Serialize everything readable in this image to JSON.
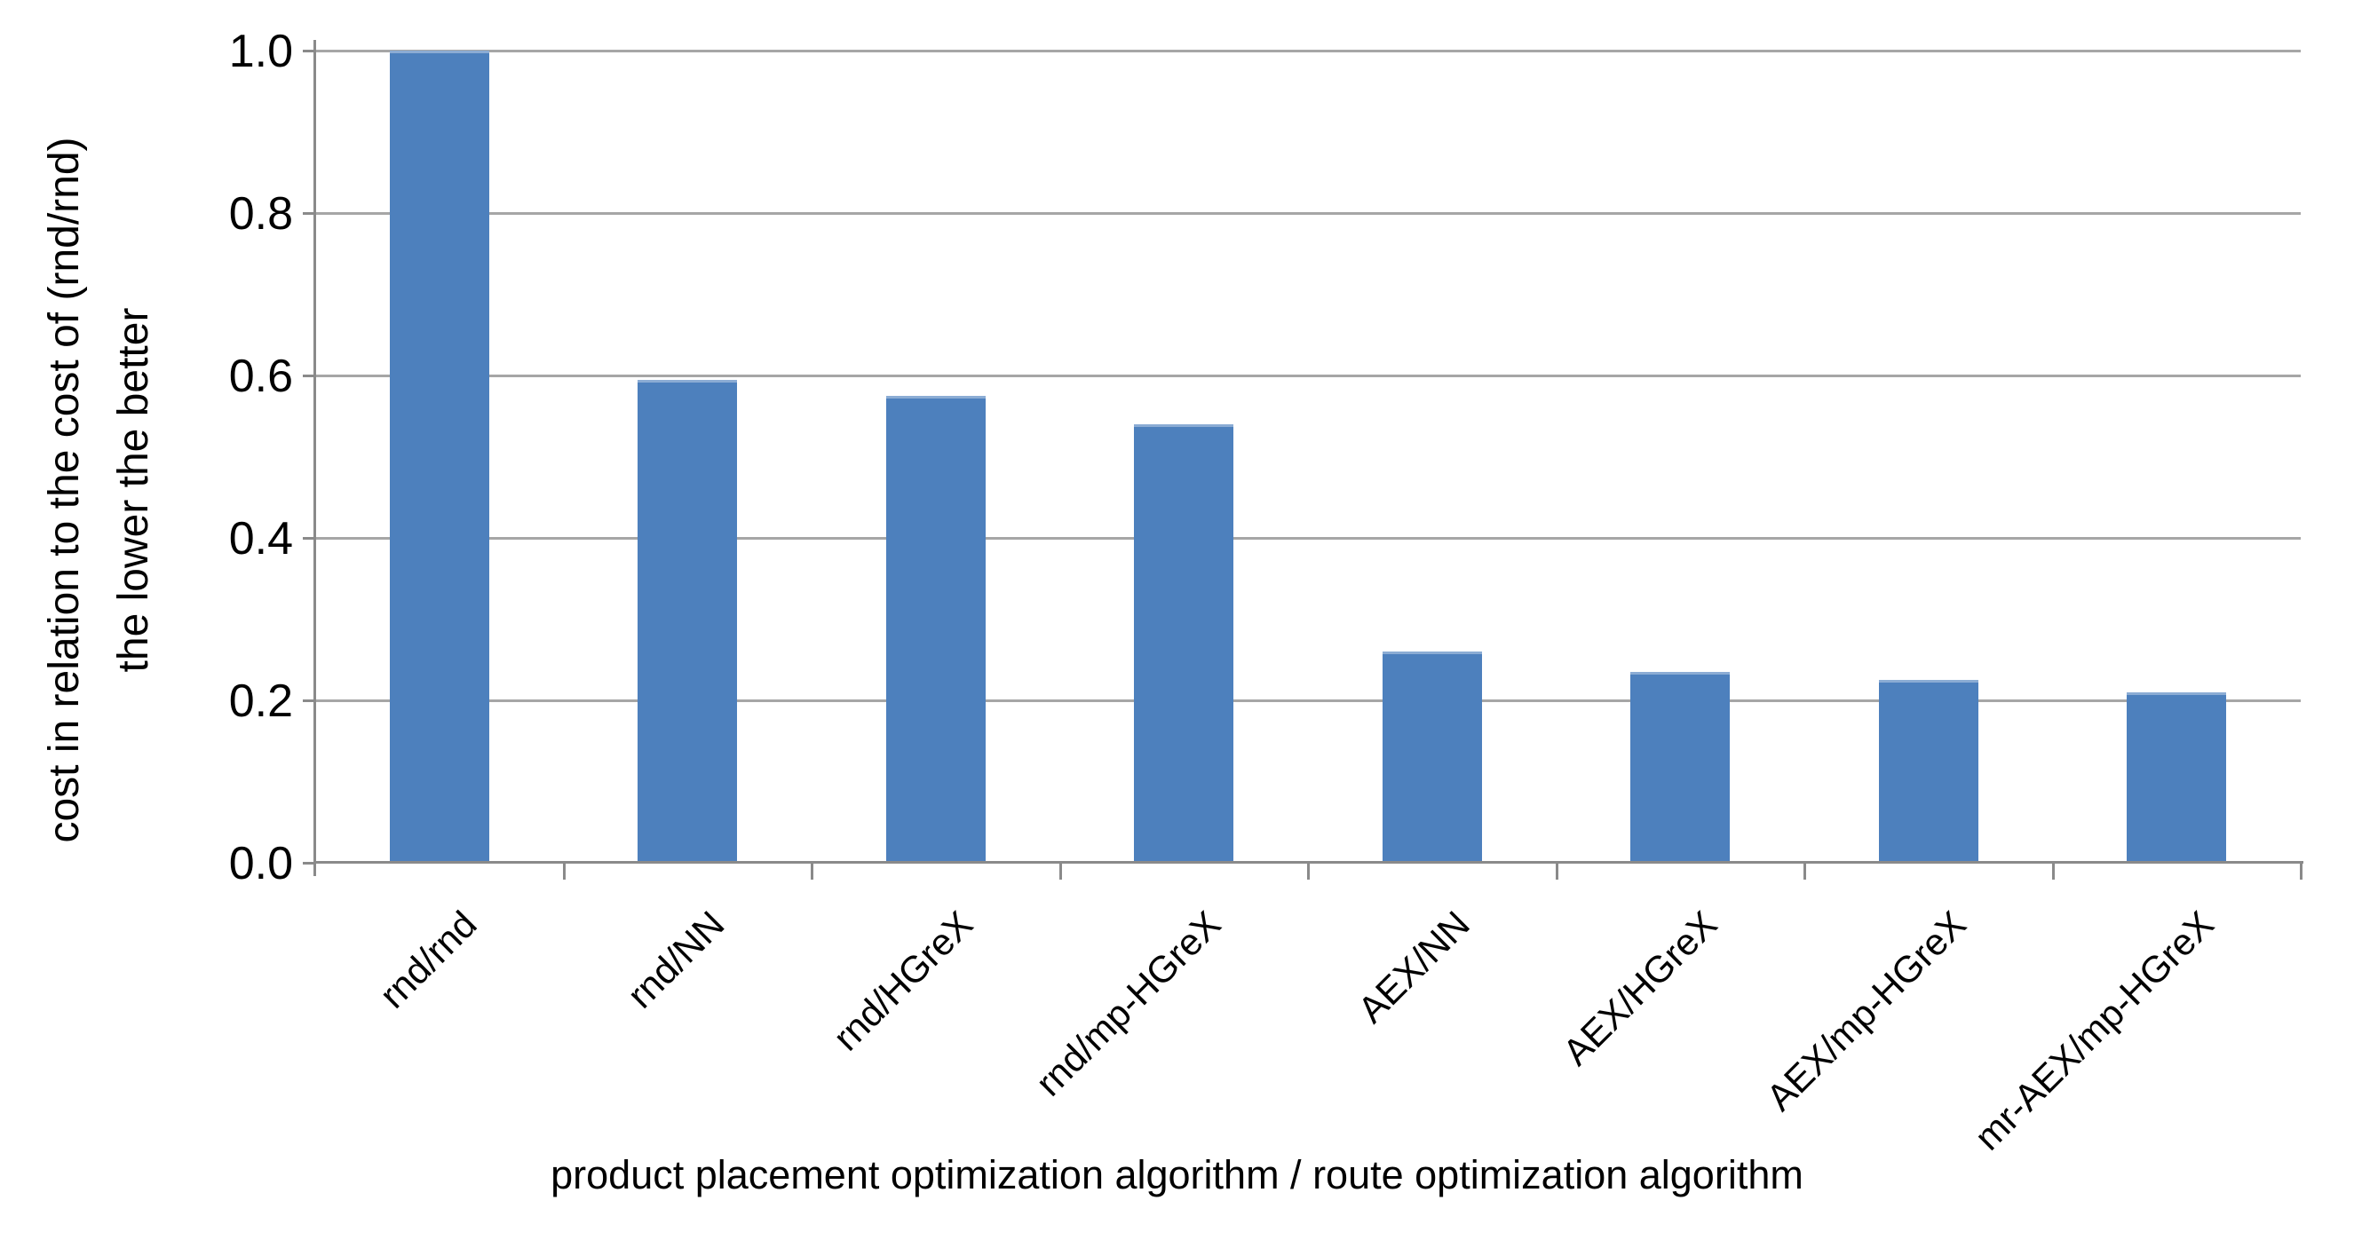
{
  "chart_data": {
    "type": "bar",
    "title": "",
    "categories": [
      "rnd/rnd",
      "rnd/NN",
      "rnd/HGreX",
      "rnd/mp-HGreX",
      "AEX/NN",
      "AEX/HGreX",
      "AEX/mp-HGreX",
      "mr-AEX/mp-HGreX"
    ],
    "values": [
      1.0,
      0.595,
      0.575,
      0.54,
      0.26,
      0.235,
      0.225,
      0.21
    ],
    "xlabel": "product placement optimization algorithm / route optimization algorithm",
    "ylabel_line1": "cost in relation to the cost of (rnd/rnd)",
    "ylabel_line2": "the lower the better",
    "ylim": [
      0.0,
      1.0
    ],
    "ytick_labels": [
      "1.0",
      "0.8",
      "0.6",
      "0.4",
      "0.2",
      "0.0"
    ],
    "ytick_values": [
      1.0,
      0.8,
      0.6,
      0.4,
      0.2,
      0.0
    ],
    "grid": "horizontal-on",
    "legend": "none",
    "colors": {
      "bar": "#4d80bd",
      "gridline": "#a6a6a6",
      "axis": "#8a8a8a",
      "text": "#000000",
      "background": "#ffffff"
    }
  }
}
